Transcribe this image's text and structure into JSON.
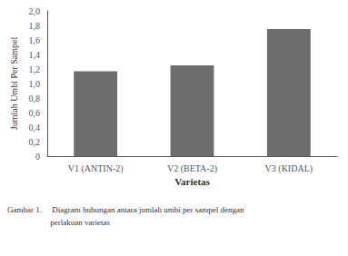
{
  "chart_data": {
    "type": "bar",
    "categories": [
      "V1 (ANTIN-2)",
      "V2 (BETA-2)",
      "V3 (KIDAL)"
    ],
    "values": [
      1.17,
      1.25,
      1.75
    ],
    "color": "#6d6d6d",
    "xlabel": "Varietas",
    "ylabel": "Jumlah Umbi Per Sampel",
    "ylim": [
      0,
      2.0
    ],
    "yticks": [
      0,
      {
        "value": 0.2,
        "label": "0,2"
      },
      {
        "value": 0.4,
        "label": "0,4"
      },
      {
        "value": 0.6,
        "label": "0,6"
      },
      {
        "value": 0.8,
        "label": "0,8"
      },
      {
        "value": 1.0,
        "label": "1,0"
      },
      {
        "value": 1.2,
        "label": "1,2"
      },
      {
        "value": 1.4,
        "label": "1,4"
      },
      {
        "value": 1.6,
        "label": "1,6"
      },
      {
        "value": 1.8,
        "label": "1,8"
      },
      {
        "value": 2.0,
        "label": "2,0"
      }
    ],
    "annotations": [
      "Gambar 1.     Diagram hubungan antara jumlah umbi per sampel dengan",
      "                     perlakuan varietas"
    ],
    "grid": false
  }
}
